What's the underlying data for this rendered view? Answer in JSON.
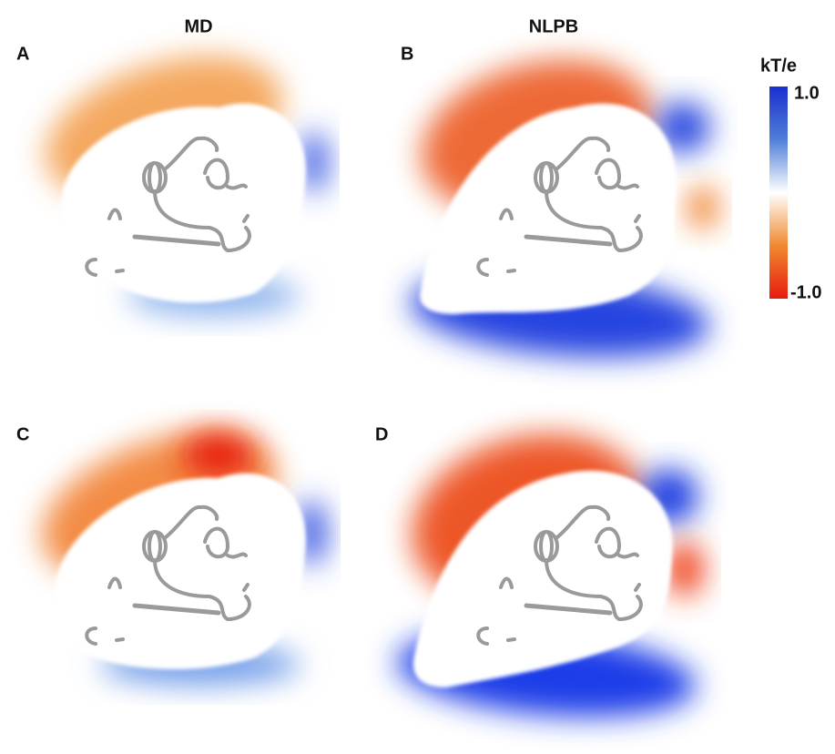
{
  "headers": {
    "left": "MD",
    "right": "NLPB"
  },
  "panels": {
    "a": "A",
    "b": "B",
    "c": "C",
    "d": "D"
  },
  "colorbar": {
    "title": "kT/e",
    "max_label": "1.0",
    "min_label": "-1.0"
  }
}
